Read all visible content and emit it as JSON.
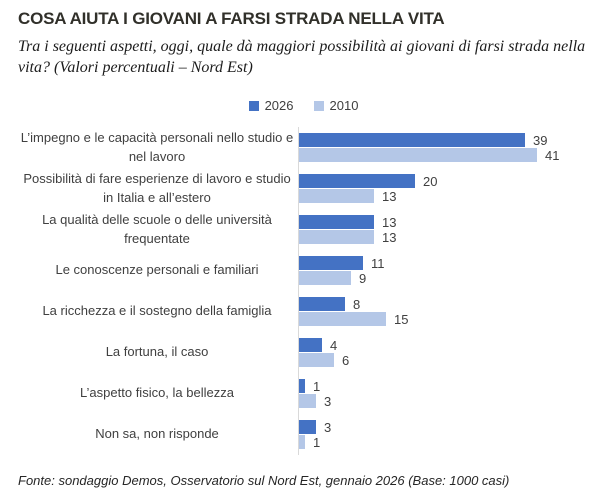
{
  "header": {
    "title": "COSA AIUTA I GIOVANI A FARSI STRADA NELLA VITA",
    "subtitle": "Tra i seguenti aspetti, oggi, quale dà maggiori possibilità ai giovani di farsi strada nella vita? (Valori percentuali – Nord Est)"
  },
  "footer": {
    "source": "Fonte: sondaggio Demos, Osservatorio sul Nord Est, gennaio 2026 (Base: 1000 casi)"
  },
  "chart_data": {
    "type": "bar",
    "orientation": "horizontal",
    "title": "COSA AIUTA I GIOVANI A FARSI STRADA NELLA VITA",
    "categories": [
      "L’impegno e le capacità personali nello studio e nel lavoro",
      "Possibilità di fare esperienze di lavoro e studio in Italia e all’estero",
      "La qualità delle scuole o delle università frequentate",
      "Le conoscenze personali e familiari",
      "La ricchezza e il sostegno della famiglia",
      "La fortuna, il caso",
      "L’aspetto fisico, la bellezza",
      "Non sa, non risponde"
    ],
    "series": [
      {
        "name": "2026",
        "color": "#4472c4",
        "values": [
          39,
          20,
          13,
          11,
          8,
          4,
          1,
          3
        ]
      },
      {
        "name": "2010",
        "color": "#b4c7e7",
        "values": [
          41,
          13,
          13,
          9,
          15,
          6,
          3,
          1
        ]
      }
    ],
    "xlim": [
      0,
      50
    ],
    "value_labels": true,
    "legend_position": "top",
    "grid": false
  }
}
